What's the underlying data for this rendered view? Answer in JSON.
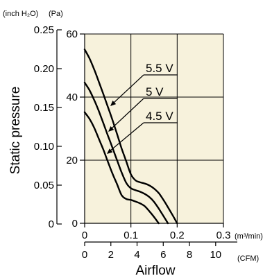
{
  "chart_data": {
    "type": "line",
    "xlabel": "Airflow",
    "ylabel": "Static pressure",
    "x_unit_primary": "(m³/min)",
    "x_unit_secondary": "(CFM)",
    "y_unit_primary": "(Pa)",
    "y_unit_secondary": "(inch H₂O)",
    "xlim": [
      0,
      0.3
    ],
    "ylim": [
      0,
      60
    ],
    "x_ticks": [
      "0",
      "0.1",
      "0.2",
      "0.3"
    ],
    "y_ticks": [
      "0",
      "20",
      "40",
      "60"
    ],
    "x2_ticks": [
      "0",
      "2",
      "4",
      "6",
      "8",
      "10"
    ],
    "y2_ticks": [
      "0",
      "0.05",
      "0.10",
      "0.15",
      "0.20",
      "0.25"
    ],
    "grid": true,
    "background": "#f7f2dc",
    "series": [
      {
        "name": "5.5 V",
        "x": [
          0.0,
          0.01,
          0.02,
          0.03,
          0.04,
          0.05,
          0.06,
          0.07,
          0.08,
          0.09,
          0.1,
          0.11,
          0.12,
          0.13,
          0.14,
          0.15,
          0.16,
          0.17,
          0.18,
          0.19,
          0.2
        ],
        "y": [
          55.1,
          52.4,
          49.0,
          45.1,
          41.1,
          37.0,
          32.8,
          28.3,
          23.7,
          19.6,
          15.5,
          13.6,
          13.0,
          12.6,
          12.0,
          11.0,
          9.6,
          7.5,
          5.1,
          2.6,
          0.0
        ]
      },
      {
        "name": "5 V",
        "x": [
          0.0,
          0.01,
          0.02,
          0.03,
          0.04,
          0.05,
          0.06,
          0.07,
          0.08,
          0.09,
          0.1,
          0.11,
          0.12,
          0.13,
          0.14,
          0.15,
          0.16,
          0.17,
          0.18
        ],
        "y": [
          44.6,
          42.3,
          39.3,
          35.8,
          31.9,
          27.9,
          24.0,
          20.0,
          16.1,
          12.8,
          11.1,
          10.5,
          10.0,
          9.3,
          8.3,
          6.8,
          4.7,
          2.4,
          0.0
        ]
      },
      {
        "name": "4.5 V",
        "x": [
          0.0,
          0.01,
          0.02,
          0.03,
          0.04,
          0.05,
          0.06,
          0.07,
          0.08,
          0.09,
          0.1,
          0.11,
          0.12,
          0.13,
          0.14,
          0.15,
          0.16
        ],
        "y": [
          35.2,
          33.2,
          30.5,
          27.0,
          23.5,
          19.6,
          15.8,
          12.4,
          8.9,
          7.7,
          7.4,
          6.9,
          6.3,
          5.4,
          3.8,
          2.0,
          0.0
        ]
      }
    ],
    "labels": [
      {
        "series": "5.5 V",
        "text": "5.5 V"
      },
      {
        "series": "5 V",
        "text": "5 V"
      },
      {
        "series": "4.5 V",
        "text": "4.5 V"
      }
    ]
  }
}
